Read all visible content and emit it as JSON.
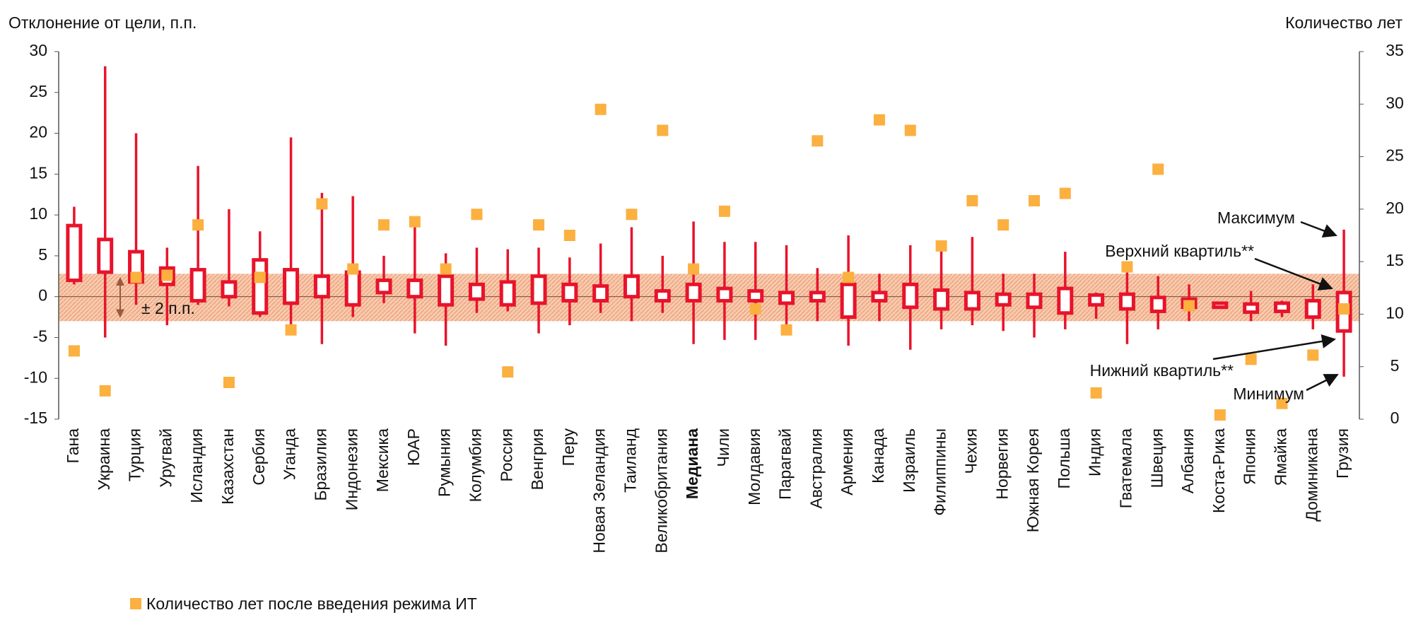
{
  "chart_data": {
    "type": "box",
    "y_axis_title": "Отклонение от цели, п.п.",
    "y2_axis_title": "Количество лет",
    "categories": [
      "Гана",
      "Украина",
      "Турция",
      "Уругвай",
      "Исландия",
      "Казахстан",
      "Сербия",
      "Уганда",
      "Бразилия",
      "Индонезия",
      "Мексика",
      "ЮАР",
      "Румыния",
      "Колумбия",
      "Россия",
      "Венгрия",
      "Перу",
      "Новая Зеландия",
      "Таиланд",
      "Великобритания",
      "Медиана",
      "Чили",
      "Молдавия",
      "Парагвай",
      "Австралия",
      "Армения",
      "Канада",
      "Израиль",
      "Филиппины",
      "Чехия",
      "Норвегия",
      "Южная Корея",
      "Польша",
      "Индия",
      "Гватемала",
      "Швеция",
      "Албания",
      "Коста-Рика",
      "Япония",
      "Ямайка",
      "Доминикана",
      "Грузия"
    ],
    "emphasis_category_index": 20,
    "box": {
      "color": "#e8132b",
      "max": [
        11,
        28.2,
        20,
        6,
        16,
        10.7,
        8,
        19.5,
        12.7,
        12.3,
        5,
        8.5,
        5.3,
        6,
        5.8,
        6,
        4.8,
        6.5,
        8.5,
        5,
        9.2,
        6.7,
        6.7,
        6.3,
        3.5,
        7.5,
        2.8,
        6.3,
        6,
        7.3,
        2.8,
        2.8,
        5.5,
        0.5,
        4,
        2.5,
        1.5,
        -0.7,
        0.7,
        -0.5,
        1.5,
        8.2
      ],
      "q3": [
        8.7,
        7,
        5.5,
        3.5,
        3.3,
        1.8,
        4.5,
        3.3,
        2.5,
        3,
        2,
        2,
        2.5,
        1.5,
        1.8,
        2.5,
        1.5,
        1.3,
        2.5,
        0.7,
        1.5,
        1,
        0.7,
        0.5,
        0.5,
        1.5,
        0.5,
        1.5,
        0.8,
        0.5,
        0.3,
        0.3,
        1,
        0.2,
        0.3,
        -0.1,
        -0.3,
        -0.8,
        -0.9,
        -0.8,
        -0.5,
        0.5
      ],
      "q1": [
        2,
        3,
        1.8,
        1.5,
        -0.5,
        0,
        -2,
        -0.8,
        0,
        -1,
        0.5,
        0,
        -1,
        -0.3,
        -1,
        -0.8,
        -0.5,
        -0.5,
        0,
        -0.5,
        -0.5,
        -0.5,
        -0.5,
        -0.8,
        -0.5,
        -2.5,
        -0.5,
        -1.3,
        -1.5,
        -1.5,
        -1,
        -1.3,
        -2,
        -1,
        -1.5,
        -1.8,
        -1.3,
        -1.3,
        -1.9,
        -1.8,
        -2.5,
        -4.2
      ],
      "min": [
        1.5,
        -5,
        -1,
        -3.5,
        -1,
        -1.2,
        -2.5,
        -3.5,
        -5.8,
        -2.5,
        -0.8,
        -4.5,
        -6,
        -2,
        -1.8,
        -4.5,
        -3.5,
        -2,
        -3,
        -2,
        -5.8,
        -5.3,
        -5.3,
        -3.5,
        -3,
        -6,
        -3,
        -6.5,
        -4,
        -3.5,
        -4.2,
        -5,
        -4,
        -2.7,
        -5.8,
        -4,
        -3,
        -1.5,
        -3,
        -2.5,
        -4,
        -9.8
      ]
    },
    "series": [
      {
        "name": "Количество лет после введения режима ИТ",
        "color": "#fbb040",
        "axis": "y2",
        "values": [
          6.5,
          2.7,
          13.5,
          13.7,
          18.5,
          3.5,
          13.5,
          8.5,
          20.5,
          14.3,
          18.5,
          18.8,
          14.3,
          19.5,
          4.5,
          18.5,
          17.5,
          29.5,
          19.5,
          27.5,
          14.3,
          19.8,
          10.5,
          8.5,
          26.5,
          13.5,
          28.5,
          27.5,
          16.5,
          20.8,
          18.5,
          20.8,
          21.5,
          2.5,
          14.5,
          23.8,
          10.8,
          0.4,
          5.7,
          1.5,
          6.1,
          10.5
        ]
      }
    ],
    "band": {
      "range": [
        -3,
        2.8
      ],
      "label": "± 2 п.п.",
      "color": "#f4a582"
    },
    "annotations": [
      "Максимум",
      "Верхний квартиль**",
      "Нижний квартиль**",
      "Минимум"
    ],
    "ylim": [
      -15,
      30
    ],
    "yticks": [
      -15,
      -10,
      -5,
      0,
      5,
      10,
      15,
      20,
      25,
      30
    ],
    "y2lim": [
      0,
      35
    ],
    "y2ticks": [
      0,
      5,
      10,
      15,
      20,
      25,
      30,
      35
    ],
    "legend": "bottom-left"
  }
}
